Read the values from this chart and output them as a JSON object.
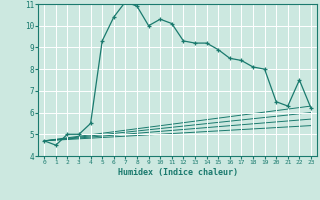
{
  "title": "",
  "xlabel": "Humidex (Indice chaleur)",
  "ylabel": "",
  "bg_color": "#cce8e0",
  "grid_color": "#ffffff",
  "line_color": "#1a7a6e",
  "xlim": [
    -0.5,
    23.5
  ],
  "ylim": [
    4,
    11
  ],
  "xticks": [
    0,
    1,
    2,
    3,
    4,
    5,
    6,
    7,
    8,
    9,
    10,
    11,
    12,
    13,
    14,
    15,
    16,
    17,
    18,
    19,
    20,
    21,
    22,
    23
  ],
  "yticks": [
    4,
    5,
    6,
    7,
    8,
    9,
    10,
    11
  ],
  "main_x": [
    0,
    1,
    2,
    3,
    4,
    5,
    6,
    7,
    8,
    9,
    10,
    11,
    12,
    13,
    14,
    15,
    16,
    17,
    18,
    19,
    20,
    21,
    22,
    23
  ],
  "main_y": [
    4.7,
    4.5,
    5.0,
    5.0,
    5.5,
    9.3,
    10.4,
    11.1,
    10.9,
    10.0,
    10.3,
    10.1,
    9.3,
    9.2,
    9.2,
    8.9,
    8.5,
    8.4,
    8.1,
    8.0,
    6.5,
    6.3,
    7.5,
    6.2
  ],
  "line2_x": [
    0,
    23
  ],
  "line2_y": [
    4.7,
    6.3
  ],
  "line3_x": [
    0,
    23
  ],
  "line3_y": [
    4.7,
    6.0
  ],
  "line4_x": [
    0,
    23
  ],
  "line4_y": [
    4.7,
    5.7
  ],
  "line5_x": [
    0,
    23
  ],
  "line5_y": [
    4.7,
    5.4
  ]
}
